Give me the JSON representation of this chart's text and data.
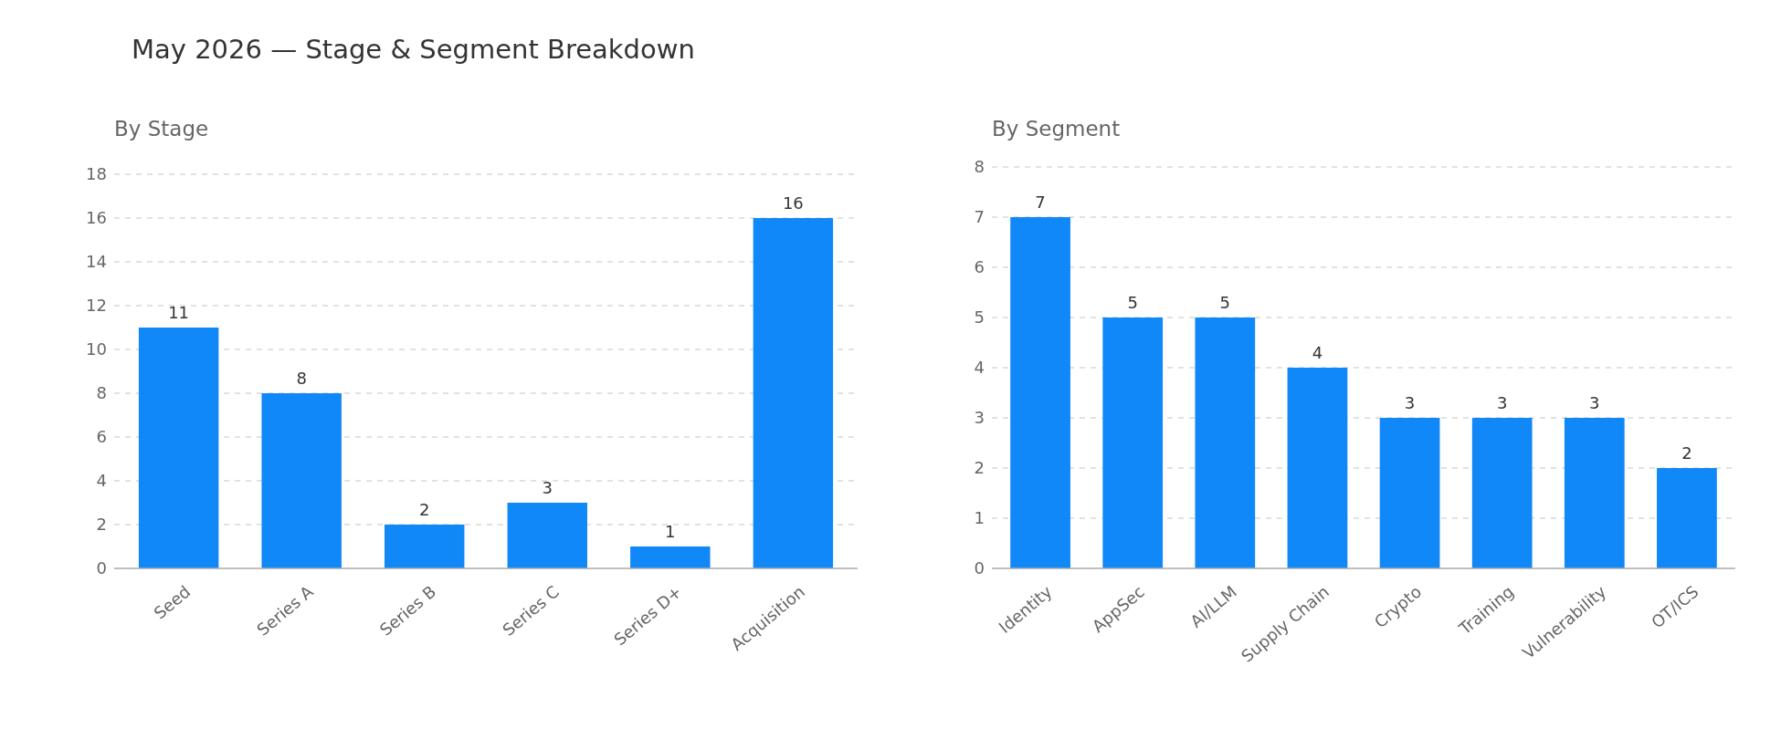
{
  "chart_data": [
    {
      "type": "bar",
      "title": "May 2026 — Stage & Segment Breakdown",
      "subtitle": "By Stage",
      "categories": [
        "Seed",
        "Series A",
        "Series B",
        "Series C",
        "Series D+",
        "Acquisition"
      ],
      "values": [
        11,
        8,
        2,
        3,
        1,
        16
      ],
      "color": "#1188f8",
      "ylim": [
        0,
        18
      ],
      "yticks": [
        0,
        2,
        4,
        6,
        8,
        10,
        12,
        14,
        16,
        18
      ],
      "grid": "y",
      "data_labels": true
    },
    {
      "type": "bar",
      "subtitle": "By Segment",
      "categories": [
        "Identity",
        "AppSec",
        "AI/LLM",
        "Supply Chain",
        "Crypto",
        "Training",
        "Vulnerability",
        "OT/ICS"
      ],
      "values": [
        7,
        5,
        5,
        4,
        3,
        3,
        3,
        2
      ],
      "color": "#1188f8",
      "ylim": [
        0,
        8
      ],
      "yticks": [
        0,
        1,
        2,
        3,
        4,
        5,
        6,
        7,
        8
      ],
      "grid": "y",
      "data_labels": true
    }
  ]
}
